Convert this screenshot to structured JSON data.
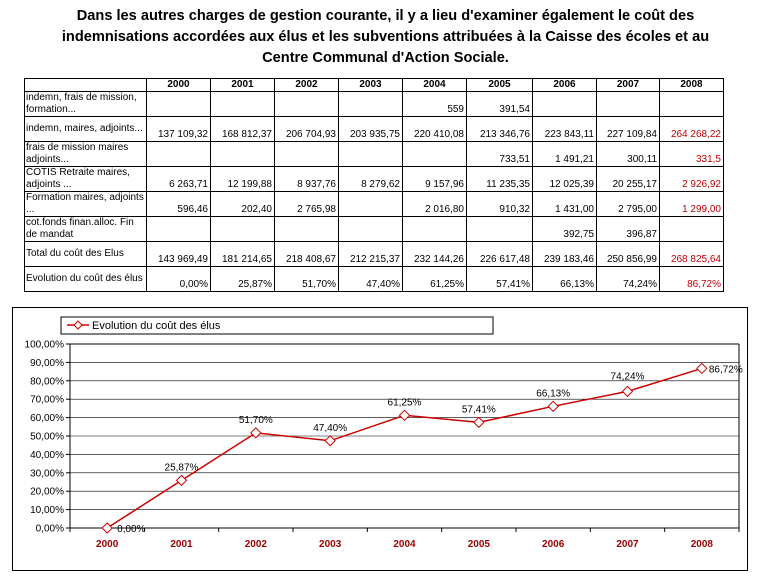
{
  "title": {
    "line1": "Dans les autres charges de gestion courante, il y a lieu d'examiner également le coût des",
    "line2": "indemnisations accordées aux élus et les subventions attribuées à la Caisse des écoles et au",
    "line3": "Centre Communal d'Action Sociale."
  },
  "table": {
    "years": [
      "2000",
      "2001",
      "2002",
      "2003",
      "2004",
      "2005",
      "2006",
      "2007",
      "2008"
    ],
    "rows": [
      {
        "label": "indemn, frais de mission, formation...",
        "values": [
          "",
          "",
          "",
          "",
          "559",
          "391,54",
          "",
          "",
          ""
        ]
      },
      {
        "label": "indemn, maires, adjoints...",
        "values": [
          "137 109,32",
          "168 812,37",
          "206 704,93",
          "203 935,75",
          "220 410,08",
          "213 346,76",
          "223 843,11",
          "227 109,84",
          "264 268,22"
        ]
      },
      {
        "label": "frais de mission maires adjoints...",
        "values": [
          "",
          "",
          "",
          "",
          "",
          "733,51",
          "1 491,21",
          "300,11",
          "331,5"
        ]
      },
      {
        "label": "COTIS Retraite maires, adjoints ...",
        "values": [
          "6 263,71",
          "12 199,88",
          "8 937,76",
          "8 279,62",
          "9 157,96",
          "11 235,35",
          "12 025,39",
          "20 255,17",
          "2 926,92"
        ]
      },
      {
        "label": "Formation maires, adjoints ...",
        "values": [
          "596,46",
          "202,40",
          "2 765,98",
          "",
          "2 016,80",
          "910,32",
          "1 431,00",
          "2 795,00",
          "1 299,00"
        ]
      },
      {
        "label": "cot.fonds finan.alloc. Fin de mandat",
        "values": [
          "",
          "",
          "",
          "",
          "",
          "",
          "392,75",
          "396,87",
          ""
        ]
      },
      {
        "label": "Total du coût des Elus",
        "values": [
          "143 969,49",
          "181 214,65",
          "218 408,67",
          "212 215,37",
          "232 144,26",
          "226 617,48",
          "239 183,46",
          "250 856,99",
          "268 825,64"
        ]
      },
      {
        "label": "Evolution du coût des élus",
        "values": [
          "0,00%",
          "25,87%",
          "51,70%",
          "47,40%",
          "61,25%",
          "57,41%",
          "66,13%",
          "74,24%",
          "86,72%"
        ]
      }
    ]
  },
  "chart_data": {
    "type": "line",
    "x": [
      "2000",
      "2001",
      "2002",
      "2003",
      "2004",
      "2005",
      "2006",
      "2007",
      "2008"
    ],
    "series": [
      {
        "name": "Evolution du coût des élus",
        "values": [
          0.0,
          25.87,
          51.7,
          47.4,
          61.25,
          57.41,
          66.13,
          74.24,
          86.72
        ]
      }
    ],
    "data_labels": [
      "0,00%",
      "25,87%",
      "51,70%",
      "47,40%",
      "61,25%",
      "57,41%",
      "66,13%",
      "74,24%",
      "86,72%"
    ],
    "ytick_labels": [
      "0,00%",
      "10,00%",
      "20,00%",
      "30,00%",
      "40,00%",
      "50,00%",
      "60,00%",
      "70,00%",
      "80,00%",
      "90,00%",
      "100,00%"
    ],
    "ylim": [
      0,
      100
    ],
    "legend_position": "top",
    "grid": true,
    "colors": {
      "line": "#cc0000",
      "marker_fill": "#ffffff",
      "x_tick": "#990000",
      "last_table_column": "#c00000"
    }
  }
}
